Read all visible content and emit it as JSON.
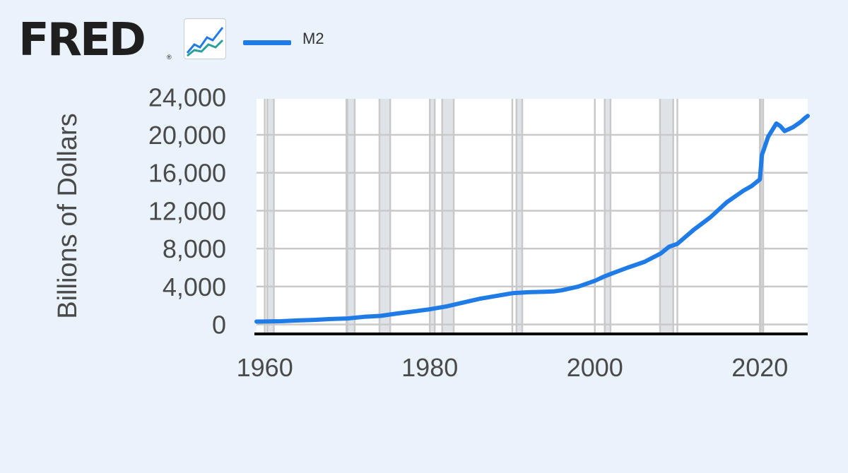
{
  "header": {
    "logo_text": "FRED",
    "registered_mark": "®",
    "icon": "line-chart-icon"
  },
  "legend": {
    "series_name": "M2",
    "color": "#1f7be6"
  },
  "chart_data": {
    "type": "line",
    "title": "",
    "xlabel": "",
    "ylabel": "Billions of Dollars",
    "xlim": [
      1959,
      2025.8
    ],
    "ylim": [
      -1000,
      23800
    ],
    "x_ticks": [
      1960,
      1980,
      2000,
      2020
    ],
    "x_tick_labels": [
      "1960",
      "1980",
      "2000",
      "2020"
    ],
    "y_ticks": [
      0,
      4000,
      8000,
      12000,
      16000,
      20000,
      24000
    ],
    "y_tick_labels": [
      "0",
      "4,000",
      "8,000",
      "12,000",
      "16,000",
      "20,000",
      "24,000"
    ],
    "grid": true,
    "legend_position": "top",
    "recessions": [
      [
        1960.3,
        1961.1
      ],
      [
        1969.9,
        1970.9
      ],
      [
        1973.9,
        1975.2
      ],
      [
        1980.0,
        1980.6
      ],
      [
        1981.5,
        1982.9
      ],
      [
        1990.5,
        1991.2
      ],
      [
        2001.2,
        2001.9
      ],
      [
        2007.9,
        2009.5
      ],
      [
        2020.1,
        2020.4
      ]
    ],
    "series": [
      {
        "name": "M2",
        "color": "#1f7be6",
        "x": [
          1959,
          1960,
          1962,
          1964,
          1966,
          1968,
          1970,
          1972,
          1974,
          1976,
          1978,
          1980,
          1982,
          1984,
          1986,
          1988,
          1990,
          1992,
          1994,
          1995,
          1996,
          1998,
          2000,
          2001,
          2002,
          2004,
          2006,
          2008,
          2009,
          2010,
          2012,
          2014,
          2016,
          2018,
          2019,
          2020,
          2020.25,
          2020.5,
          2021,
          2021.5,
          2022,
          2022.5,
          2023,
          2023.5,
          2024,
          2024.5,
          2025,
          2025.5,
          2025.8
        ],
        "values": [
          300,
          310,
          340,
          420,
          480,
          570,
          630,
          800,
          900,
          1150,
          1370,
          1600,
          1900,
          2300,
          2700,
          3000,
          3300,
          3400,
          3450,
          3480,
          3600,
          4000,
          4600,
          5000,
          5350,
          6000,
          6600,
          7500,
          8200,
          8500,
          10000,
          11300,
          12900,
          14100,
          14600,
          15300,
          17900,
          18500,
          19800,
          20500,
          21200,
          20900,
          20400,
          20600,
          20800,
          21100,
          21400,
          21800,
          22000
        ]
      }
    ]
  }
}
